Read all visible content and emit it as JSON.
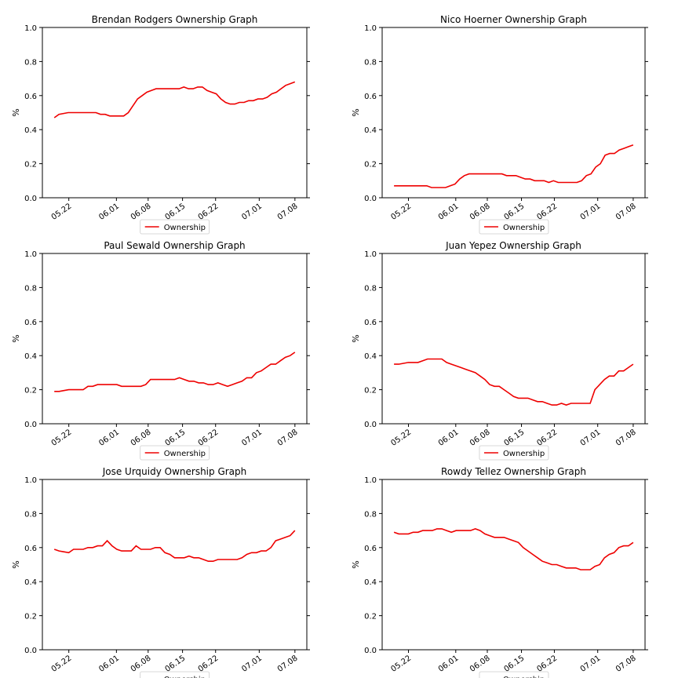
{
  "chart_data": [
    {
      "type": "line",
      "title": "Brendan Rodgers  Ownership Graph",
      "ylabel": "%",
      "ylim": [
        0,
        1
      ],
      "yticks": [
        "0.0",
        "0.2",
        "0.4",
        "0.6",
        "0.8",
        "1.0"
      ],
      "x_tick_labels": [
        "05.22",
        "06.01",
        "06.08",
        "06.15",
        "06.22",
        "07.01",
        "07.08"
      ],
      "legend": "Ownership",
      "legend_position": "bottom",
      "color": "#ee0000",
      "series": [
        {
          "name": "Ownership",
          "values": [
            0.47,
            0.49,
            0.495,
            0.5,
            0.5,
            0.5,
            0.5,
            0.5,
            0.5,
            0.5,
            0.49,
            0.49,
            0.48,
            0.48,
            0.48,
            0.48,
            0.5,
            0.54,
            0.58,
            0.6,
            0.62,
            0.63,
            0.64,
            0.64,
            0.64,
            0.64,
            0.64,
            0.64,
            0.65,
            0.64,
            0.64,
            0.65,
            0.65,
            0.63,
            0.62,
            0.61,
            0.58,
            0.56,
            0.55,
            0.55,
            0.56,
            0.56,
            0.57,
            0.57,
            0.58,
            0.58,
            0.59,
            0.61,
            0.62,
            0.64,
            0.66,
            0.67,
            0.68
          ]
        }
      ]
    },
    {
      "type": "line",
      "title": "Nico Hoerner  Ownership Graph",
      "ylabel": "%",
      "ylim": [
        0,
        1
      ],
      "yticks": [
        "0.0",
        "0.2",
        "0.4",
        "0.6",
        "0.8",
        "1.0"
      ],
      "x_tick_labels": [
        "05.22",
        "06.01",
        "06.08",
        "06.15",
        "06.22",
        "07.01",
        "07.08"
      ],
      "legend": "Ownership",
      "legend_position": "bottom",
      "color": "#ee0000",
      "series": [
        {
          "name": "Ownership",
          "values": [
            0.07,
            0.07,
            0.07,
            0.07,
            0.07,
            0.07,
            0.07,
            0.07,
            0.06,
            0.06,
            0.06,
            0.06,
            0.07,
            0.08,
            0.11,
            0.13,
            0.14,
            0.14,
            0.14,
            0.14,
            0.14,
            0.14,
            0.14,
            0.14,
            0.13,
            0.13,
            0.13,
            0.12,
            0.11,
            0.11,
            0.1,
            0.1,
            0.1,
            0.09,
            0.1,
            0.09,
            0.09,
            0.09,
            0.09,
            0.09,
            0.1,
            0.13,
            0.14,
            0.18,
            0.2,
            0.25,
            0.26,
            0.26,
            0.28,
            0.29,
            0.3,
            0.31
          ]
        }
      ]
    },
    {
      "type": "line",
      "title": "Paul Sewald  Ownership Graph",
      "ylabel": "%",
      "ylim": [
        0,
        1
      ],
      "yticks": [
        "0.0",
        "0.2",
        "0.4",
        "0.6",
        "0.8",
        "1.0"
      ],
      "x_tick_labels": [
        "05.22",
        "06.01",
        "06.08",
        "06.15",
        "06.22",
        "07.01",
        "07.08"
      ],
      "legend": "Ownership",
      "legend_position": "bottom",
      "color": "#ee0000",
      "series": [
        {
          "name": "Ownership",
          "values": [
            0.19,
            0.19,
            0.195,
            0.2,
            0.2,
            0.2,
            0.2,
            0.22,
            0.22,
            0.23,
            0.23,
            0.23,
            0.23,
            0.23,
            0.22,
            0.22,
            0.22,
            0.22,
            0.22,
            0.23,
            0.26,
            0.26,
            0.26,
            0.26,
            0.26,
            0.26,
            0.27,
            0.26,
            0.25,
            0.25,
            0.24,
            0.24,
            0.23,
            0.23,
            0.24,
            0.23,
            0.22,
            0.23,
            0.24,
            0.25,
            0.27,
            0.27,
            0.3,
            0.31,
            0.33,
            0.35,
            0.35,
            0.37,
            0.39,
            0.4,
            0.42
          ]
        }
      ]
    },
    {
      "type": "line",
      "title": "Juan Yepez  Ownership Graph",
      "ylabel": "%",
      "ylim": [
        0,
        1
      ],
      "yticks": [
        "0.0",
        "0.2",
        "0.4",
        "0.6",
        "0.8",
        "1.0"
      ],
      "x_tick_labels": [
        "05.22",
        "06.01",
        "06.08",
        "06.15",
        "06.22",
        "07.01",
        "07.08"
      ],
      "legend": "Ownership",
      "legend_position": "bottom",
      "color": "#ee0000",
      "series": [
        {
          "name": "Ownership",
          "values": [
            0.35,
            0.35,
            0.355,
            0.36,
            0.36,
            0.36,
            0.37,
            0.38,
            0.38,
            0.38,
            0.38,
            0.36,
            0.35,
            0.34,
            0.33,
            0.32,
            0.31,
            0.3,
            0.28,
            0.26,
            0.23,
            0.22,
            0.22,
            0.2,
            0.18,
            0.16,
            0.15,
            0.15,
            0.15,
            0.14,
            0.13,
            0.13,
            0.12,
            0.11,
            0.11,
            0.12,
            0.11,
            0.12,
            0.12,
            0.12,
            0.12,
            0.12,
            0.2,
            0.23,
            0.26,
            0.28,
            0.28,
            0.31,
            0.31,
            0.33,
            0.35
          ]
        }
      ]
    },
    {
      "type": "line",
      "title": "Jose Urquidy  Ownership Graph",
      "ylabel": "%",
      "ylim": [
        0,
        1
      ],
      "yticks": [
        "0.0",
        "0.2",
        "0.4",
        "0.6",
        "0.8",
        "1.0"
      ],
      "x_tick_labels": [
        "05.22",
        "06.01",
        "06.08",
        "06.15",
        "06.22",
        "07.01",
        "07.08"
      ],
      "legend": "Ownership",
      "legend_position": "bottom",
      "color": "#ee0000",
      "series": [
        {
          "name": "Ownership",
          "values": [
            0.59,
            0.58,
            0.575,
            0.57,
            0.59,
            0.59,
            0.59,
            0.6,
            0.6,
            0.61,
            0.61,
            0.64,
            0.61,
            0.59,
            0.58,
            0.58,
            0.58,
            0.61,
            0.59,
            0.59,
            0.59,
            0.6,
            0.6,
            0.57,
            0.56,
            0.54,
            0.54,
            0.54,
            0.55,
            0.54,
            0.54,
            0.53,
            0.52,
            0.52,
            0.53,
            0.53,
            0.53,
            0.53,
            0.53,
            0.54,
            0.56,
            0.57,
            0.57,
            0.58,
            0.58,
            0.6,
            0.64,
            0.65,
            0.66,
            0.67,
            0.7
          ]
        }
      ]
    },
    {
      "type": "line",
      "title": "Rowdy Tellez  Ownership Graph",
      "ylabel": "%",
      "ylim": [
        0,
        1
      ],
      "yticks": [
        "0.0",
        "0.2",
        "0.4",
        "0.6",
        "0.8",
        "1.0"
      ],
      "x_tick_labels": [
        "05.22",
        "06.01",
        "06.08",
        "06.15",
        "06.22",
        "07.01",
        "07.08"
      ],
      "legend": "Ownership",
      "legend_position": "bottom",
      "color": "#ee0000",
      "series": [
        {
          "name": "Ownership",
          "values": [
            0.69,
            0.68,
            0.68,
            0.68,
            0.69,
            0.69,
            0.7,
            0.7,
            0.7,
            0.71,
            0.71,
            0.7,
            0.69,
            0.7,
            0.7,
            0.7,
            0.7,
            0.71,
            0.7,
            0.68,
            0.67,
            0.66,
            0.66,
            0.66,
            0.65,
            0.64,
            0.63,
            0.6,
            0.58,
            0.56,
            0.54,
            0.52,
            0.51,
            0.5,
            0.5,
            0.49,
            0.48,
            0.48,
            0.48,
            0.47,
            0.47,
            0.47,
            0.49,
            0.5,
            0.54,
            0.56,
            0.57,
            0.6,
            0.61,
            0.61,
            0.63
          ]
        }
      ]
    }
  ]
}
